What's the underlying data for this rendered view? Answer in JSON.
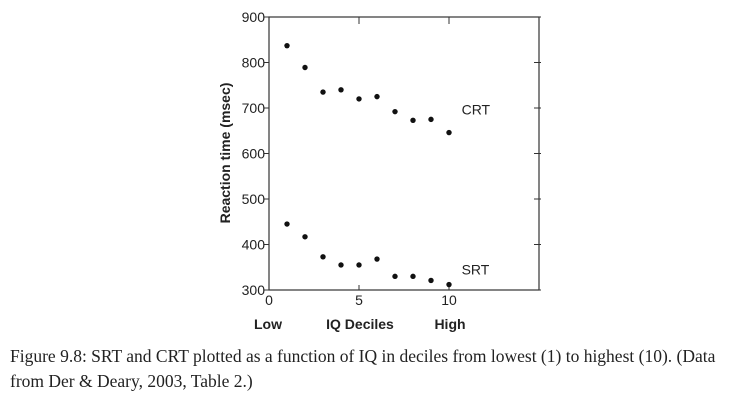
{
  "chart_data": {
    "type": "scatter",
    "xlabel": "IQ Deciles",
    "xlabel_low": "Low",
    "xlabel_high": "High",
    "ylabel": "Reaction time (msec)",
    "xlim": [
      0,
      15
    ],
    "ylim": [
      300,
      900
    ],
    "xticks": [
      0,
      5,
      10
    ],
    "yticks": [
      300,
      400,
      500,
      600,
      700,
      800,
      900
    ],
    "grid": false,
    "series": [
      {
        "name": "CRT",
        "x": [
          1,
          2,
          3,
          4,
          5,
          6,
          7,
          8,
          9,
          10
        ],
        "values": [
          837,
          789,
          735,
          740,
          720,
          725,
          692,
          673,
          675,
          646
        ]
      },
      {
        "name": "SRT",
        "x": [
          1,
          2,
          3,
          4,
          5,
          6,
          7,
          8,
          9,
          10
        ],
        "values": [
          445,
          417,
          373,
          355,
          355,
          368,
          330,
          330,
          321,
          312
        ]
      }
    ]
  },
  "caption": "Figure 9.8: SRT and CRT plotted as a function of IQ in deciles from lowest (1) to highest (10). (Data from Der & Deary, 2003, Table 2.)"
}
